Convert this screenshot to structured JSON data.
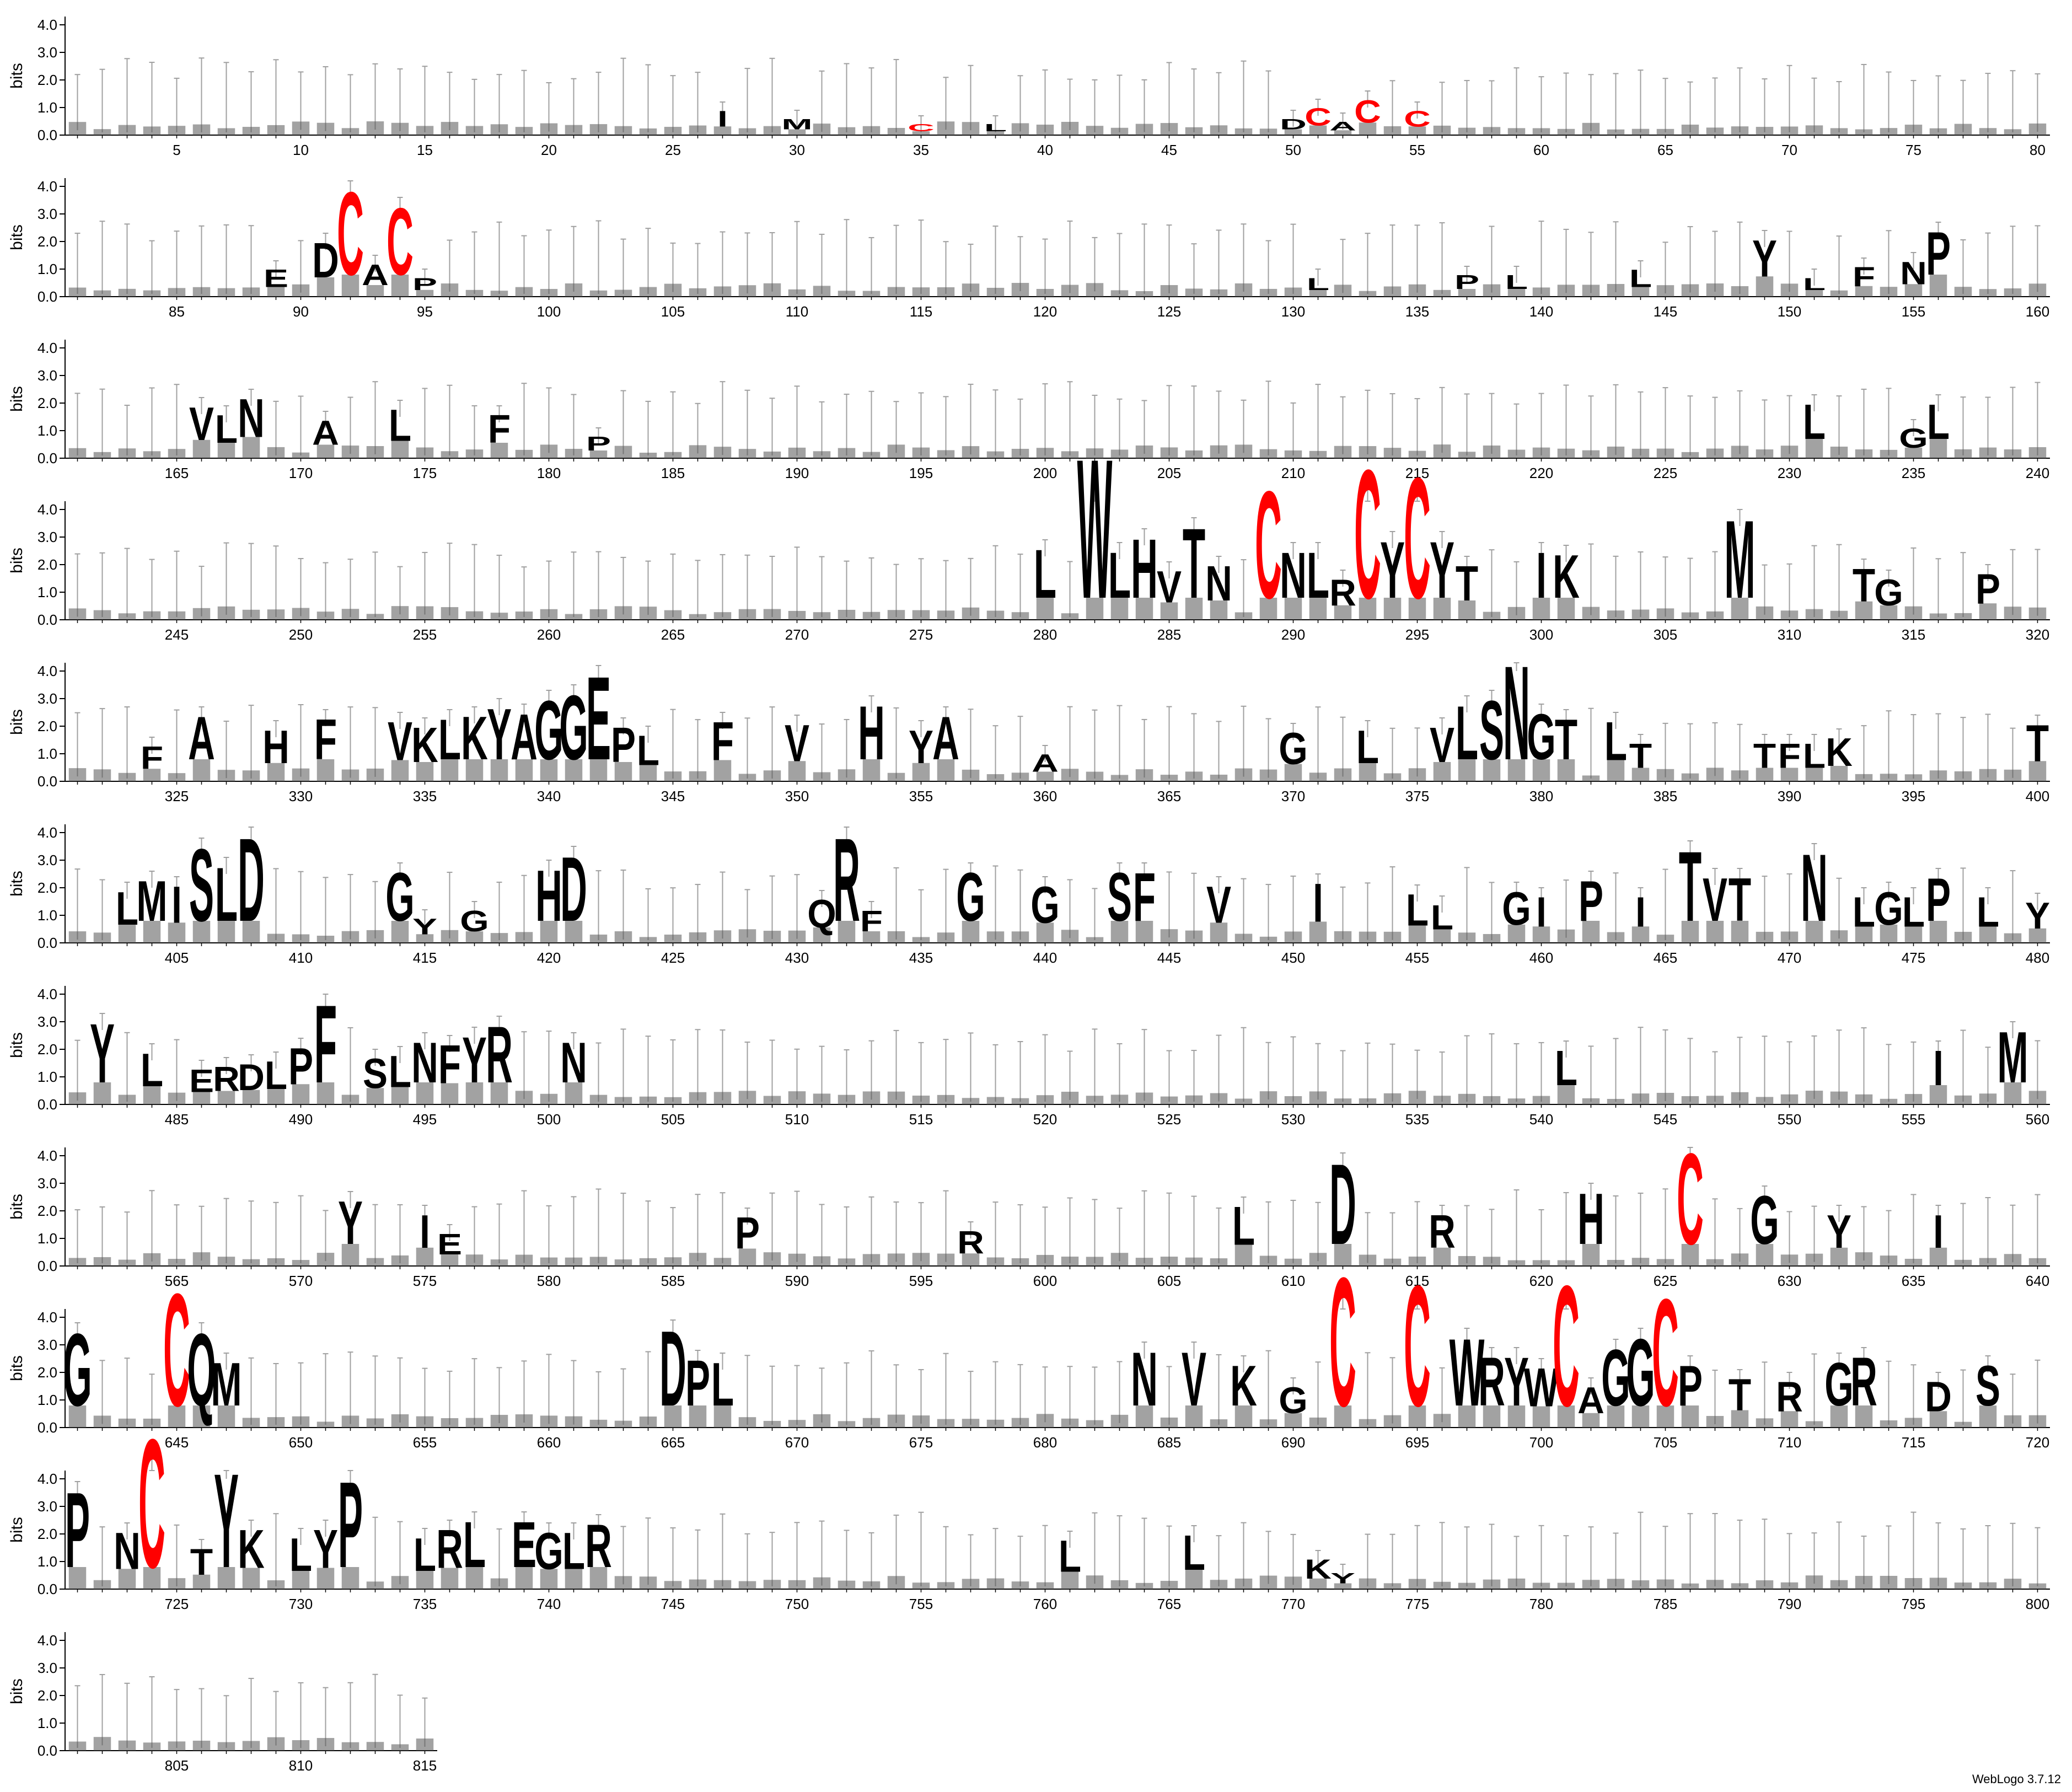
{
  "chart_data": {
    "type": "sequence-logo",
    "ylabel": "bits",
    "ylim": [
      0,
      4.3
    ],
    "yticks": [
      "0.0",
      "1.0",
      "2.0",
      "3.0",
      "4.0"
    ],
    "positions_per_row": 80,
    "total_positions": 815,
    "x_tick_step": 5,
    "colors": {
      "default": "#000000",
      "cysteine": "#ff0000",
      "errorbar": "#a0a0a0"
    },
    "stacks": [
      {
        "pos": 27,
        "top": "I",
        "h": 0.9
      },
      {
        "pos": 30,
        "top": "M",
        "h": 0.6
      },
      {
        "pos": 35,
        "top": "C",
        "h": 0.4
      },
      {
        "pos": 38,
        "top": "L",
        "h": 0.4
      },
      {
        "pos": 50,
        "top": "D",
        "h": 0.6
      },
      {
        "pos": 51,
        "top": "C",
        "h": 1.0
      },
      {
        "pos": 52,
        "top": "A",
        "h": 0.5
      },
      {
        "pos": 53,
        "top": "C",
        "h": 1.3
      },
      {
        "pos": 55,
        "top": "C",
        "h": 0.9
      },
      {
        "pos": 89,
        "top": "E",
        "h": 1.0
      },
      {
        "pos": 91,
        "top": "D",
        "h": 2.0
      },
      {
        "pos": 92,
        "top": "C",
        "h": 3.9
      },
      {
        "pos": 93,
        "top": "A",
        "h": 1.2
      },
      {
        "pos": 94,
        "top": "C",
        "h": 3.3
      },
      {
        "pos": 95,
        "top": "P",
        "h": 0.7
      },
      {
        "pos": 131,
        "top": "L",
        "h": 0.7
      },
      {
        "pos": 137,
        "top": "P",
        "h": 0.8
      },
      {
        "pos": 139,
        "top": "L",
        "h": 0.8
      },
      {
        "pos": 144,
        "top": "L",
        "h": 1.0
      },
      {
        "pos": 149,
        "top": "Y",
        "h": 2.1
      },
      {
        "pos": 151,
        "top": "L",
        "h": 0.7
      },
      {
        "pos": 153,
        "top": "F",
        "h": 1.1
      },
      {
        "pos": 155,
        "top": "N",
        "h": 1.3
      },
      {
        "pos": 156,
        "top": "P",
        "h": 2.4
      },
      {
        "pos": 166,
        "top": "V",
        "h": 1.9
      },
      {
        "pos": 167,
        "top": "L",
        "h": 1.6
      },
      {
        "pos": 168,
        "top": "N",
        "h": 2.2
      },
      {
        "pos": 171,
        "top": "A",
        "h": 1.4
      },
      {
        "pos": 174,
        "top": "L",
        "h": 1.8
      },
      {
        "pos": 178,
        "top": "F",
        "h": 1.6
      },
      {
        "pos": 182,
        "top": "P",
        "h": 0.8
      },
      {
        "pos": 231,
        "top": "L",
        "h": 2.0
      },
      {
        "pos": 235,
        "top": "G",
        "h": 1.1
      },
      {
        "pos": 236,
        "top": "L",
        "h": 2.0
      },
      {
        "pos": 280,
        "top": "L",
        "h": 2.6
      },
      {
        "pos": 282,
        "top": "W",
        "h": 6.0
      },
      {
        "pos": 283,
        "top": "L",
        "h": 2.5
      },
      {
        "pos": 284,
        "top": "H",
        "h": 3.0
      },
      {
        "pos": 285,
        "top": "V",
        "h": 1.8
      },
      {
        "pos": 286,
        "top": "T",
        "h": 3.4
      },
      {
        "pos": 287,
        "top": "N",
        "h": 2.0
      },
      {
        "pos": 289,
        "top": "C",
        "h": 4.8
      },
      {
        "pos": 290,
        "top": "N",
        "h": 2.5
      },
      {
        "pos": 291,
        "top": "L",
        "h": 2.5
      },
      {
        "pos": 292,
        "top": "R",
        "h": 1.5
      },
      {
        "pos": 293,
        "top": "C",
        "h": 5.6
      },
      {
        "pos": 294,
        "top": "Y",
        "h": 2.9
      },
      {
        "pos": 295,
        "top": "C",
        "h": 5.3
      },
      {
        "pos": 296,
        "top": "Y",
        "h": 2.9
      },
      {
        "pos": 297,
        "top": "T",
        "h": 2.0
      },
      {
        "pos": 300,
        "top": "I",
        "h": 2.5
      },
      {
        "pos": 301,
        "top": "K",
        "h": 2.4
      },
      {
        "pos": 308,
        "top": "M",
        "h": 3.7
      },
      {
        "pos": 313,
        "top": "T",
        "h": 1.9
      },
      {
        "pos": 314,
        "top": "G",
        "h": 1.5
      },
      {
        "pos": 318,
        "top": "P",
        "h": 1.7
      },
      {
        "pos": 324,
        "top": "F",
        "h": 1.3
      },
      {
        "pos": 326,
        "top": "A",
        "h": 2.4
      },
      {
        "pos": 329,
        "top": "H",
        "h": 1.9
      },
      {
        "pos": 331,
        "top": "F",
        "h": 2.3
      },
      {
        "pos": 334,
        "top": "V",
        "h": 2.2
      },
      {
        "pos": 335,
        "top": "K",
        "h": 2.0
      },
      {
        "pos": 336,
        "top": "L",
        "h": 2.3
      },
      {
        "pos": 337,
        "top": "K",
        "h": 2.4
      },
      {
        "pos": 338,
        "top": "Y",
        "h": 2.7
      },
      {
        "pos": 339,
        "top": "A",
        "h": 2.5
      },
      {
        "pos": 340,
        "top": "G",
        "h": 3.0
      },
      {
        "pos": 341,
        "top": "G",
        "h": 3.2
      },
      {
        "pos": 342,
        "top": "E",
        "h": 3.9
      },
      {
        "pos": 343,
        "top": "P",
        "h": 2.0
      },
      {
        "pos": 344,
        "top": "L",
        "h": 1.7
      },
      {
        "pos": 347,
        "top": "F",
        "h": 2.2
      },
      {
        "pos": 350,
        "top": "V",
        "h": 2.1
      },
      {
        "pos": 353,
        "top": "H",
        "h": 2.8
      },
      {
        "pos": 355,
        "top": "Y",
        "h": 1.9
      },
      {
        "pos": 356,
        "top": "A",
        "h": 2.4
      },
      {
        "pos": 360,
        "top": "A",
        "h": 1.0
      },
      {
        "pos": 370,
        "top": "G",
        "h": 1.8
      },
      {
        "pos": 373,
        "top": "L",
        "h": 1.9
      },
      {
        "pos": 376,
        "top": "V",
        "h": 2.0
      },
      {
        "pos": 377,
        "top": "L",
        "h": 2.8
      },
      {
        "pos": 378,
        "top": "S",
        "h": 3.0
      },
      {
        "pos": 379,
        "top": "N",
        "h": 4.3
      },
      {
        "pos": 380,
        "top": "G",
        "h": 2.5
      },
      {
        "pos": 381,
        "top": "T",
        "h": 2.3
      },
      {
        "pos": 383,
        "top": "L",
        "h": 2.2
      },
      {
        "pos": 384,
        "top": "T",
        "h": 1.4
      },
      {
        "pos": 389,
        "top": "T",
        "h": 1.4
      },
      {
        "pos": 390,
        "top": "F",
        "h": 1.4
      },
      {
        "pos": 391,
        "top": "L",
        "h": 1.4
      },
      {
        "pos": 392,
        "top": "K",
        "h": 1.6
      },
      {
        "pos": 400,
        "top": "T",
        "h": 2.1
      },
      {
        "pos": 403,
        "top": "L",
        "h": 1.9
      },
      {
        "pos": 404,
        "top": "M",
        "h": 2.3
      },
      {
        "pos": 405,
        "top": "I",
        "h": 2.1
      },
      {
        "pos": 406,
        "top": "S",
        "h": 3.5
      },
      {
        "pos": 407,
        "top": "L",
        "h": 2.8
      },
      {
        "pos": 408,
        "top": "D",
        "h": 3.9
      },
      {
        "pos": 414,
        "top": "G",
        "h": 2.6
      },
      {
        "pos": 415,
        "top": "Y",
        "h": 0.9
      },
      {
        "pos": 417,
        "top": "G",
        "h": 1.2
      },
      {
        "pos": 420,
        "top": "H",
        "h": 2.7
      },
      {
        "pos": 421,
        "top": "D",
        "h": 3.2
      },
      {
        "pos": 431,
        "top": "Q",
        "h": 1.6
      },
      {
        "pos": 432,
        "top": "R",
        "h": 3.9
      },
      {
        "pos": 433,
        "top": "F",
        "h": 1.2
      },
      {
        "pos": 437,
        "top": "G",
        "h": 2.6
      },
      {
        "pos": 440,
        "top": "G",
        "h": 2.1
      },
      {
        "pos": 443,
        "top": "S",
        "h": 2.6
      },
      {
        "pos": 444,
        "top": "F",
        "h": 2.6
      },
      {
        "pos": 447,
        "top": "V",
        "h": 2.1
      },
      {
        "pos": 451,
        "top": "I",
        "h": 2.2
      },
      {
        "pos": 455,
        "top": "L",
        "h": 1.8
      },
      {
        "pos": 456,
        "top": "L",
        "h": 1.4
      },
      {
        "pos": 459,
        "top": "G",
        "h": 1.9
      },
      {
        "pos": 460,
        "top": "I",
        "h": 1.7
      },
      {
        "pos": 462,
        "top": "P",
        "h": 2.3
      },
      {
        "pos": 464,
        "top": "I",
        "h": 1.7
      },
      {
        "pos": 466,
        "top": "T",
        "h": 3.4
      },
      {
        "pos": 467,
        "top": "V",
        "h": 2.4
      },
      {
        "pos": 468,
        "top": "T",
        "h": 2.4
      },
      {
        "pos": 471,
        "top": "N",
        "h": 3.3
      },
      {
        "pos": 473,
        "top": "L",
        "h": 1.7
      },
      {
        "pos": 474,
        "top": "G",
        "h": 1.9
      },
      {
        "pos": 475,
        "top": "L",
        "h": 1.7
      },
      {
        "pos": 476,
        "top": "P",
        "h": 2.4
      },
      {
        "pos": 478,
        "top": "L",
        "h": 1.7
      },
      {
        "pos": 480,
        "top": "Y",
        "h": 1.5
      },
      {
        "pos": 482,
        "top": "Y",
        "h": 3.0
      },
      {
        "pos": 484,
        "top": "L",
        "h": 1.9
      },
      {
        "pos": 486,
        "top": "E",
        "h": 1.3
      },
      {
        "pos": 487,
        "top": "R",
        "h": 1.4
      },
      {
        "pos": 488,
        "top": "D",
        "h": 1.5
      },
      {
        "pos": 489,
        "top": "L",
        "h": 1.6
      },
      {
        "pos": 490,
        "top": "P",
        "h": 2.1
      },
      {
        "pos": 491,
        "top": "F",
        "h": 3.7
      },
      {
        "pos": 493,
        "top": "S",
        "h": 1.7
      },
      {
        "pos": 494,
        "top": "L",
        "h": 1.8
      },
      {
        "pos": 495,
        "top": "N",
        "h": 2.3
      },
      {
        "pos": 496,
        "top": "F",
        "h": 2.2
      },
      {
        "pos": 497,
        "top": "Y",
        "h": 2.5
      },
      {
        "pos": 498,
        "top": "R",
        "h": 2.9
      },
      {
        "pos": 501,
        "top": "N",
        "h": 2.3
      },
      {
        "pos": 541,
        "top": "L",
        "h": 2.0
      },
      {
        "pos": 556,
        "top": "I",
        "h": 2.0
      },
      {
        "pos": 559,
        "top": "M",
        "h": 2.7
      },
      {
        "pos": 572,
        "top": "Y",
        "h": 2.4
      },
      {
        "pos": 575,
        "top": "I",
        "h": 1.9
      },
      {
        "pos": 576,
        "top": "E",
        "h": 1.2
      },
      {
        "pos": 588,
        "top": "P",
        "h": 1.8
      },
      {
        "pos": 597,
        "top": "R",
        "h": 1.3
      },
      {
        "pos": 608,
        "top": "L",
        "h": 2.2
      },
      {
        "pos": 612,
        "top": "D",
        "h": 3.8
      },
      {
        "pos": 616,
        "top": "R",
        "h": 1.9
      },
      {
        "pos": 622,
        "top": "H",
        "h": 2.7
      },
      {
        "pos": 626,
        "top": "C",
        "h": 4.2
      },
      {
        "pos": 629,
        "top": "G",
        "h": 2.6
      },
      {
        "pos": 632,
        "top": "Y",
        "h": 1.9
      },
      {
        "pos": 636,
        "top": "I",
        "h": 1.9
      },
      {
        "pos": 641,
        "top": "G",
        "h": 3.5
      },
      {
        "pos": 645,
        "top": "C",
        "h": 5.0
      },
      {
        "pos": 646,
        "top": "Q",
        "h": 3.5
      },
      {
        "pos": 647,
        "top": "M",
        "h": 2.4
      },
      {
        "pos": 665,
        "top": "D",
        "h": 3.6
      },
      {
        "pos": 666,
        "top": "P",
        "h": 2.5
      },
      {
        "pos": 667,
        "top": "L",
        "h": 2.4
      },
      {
        "pos": 684,
        "top": "N",
        "h": 2.8
      },
      {
        "pos": 686,
        "top": "V",
        "h": 2.8
      },
      {
        "pos": 688,
        "top": "K",
        "h": 2.3
      },
      {
        "pos": 690,
        "top": "G",
        "h": 1.5
      },
      {
        "pos": 692,
        "top": "C",
        "h": 5.6
      },
      {
        "pos": 695,
        "top": "C",
        "h": 5.3
      },
      {
        "pos": 697,
        "top": "W",
        "h": 3.3
      },
      {
        "pos": 698,
        "top": "R",
        "h": 2.6
      },
      {
        "pos": 699,
        "top": "Y",
        "h": 2.6
      },
      {
        "pos": 700,
        "top": "W",
        "h": 2.2
      },
      {
        "pos": 701,
        "top": "C",
        "h": 5.3
      },
      {
        "pos": 702,
        "top": "A",
        "h": 1.5
      },
      {
        "pos": 703,
        "top": "G",
        "h": 2.9
      },
      {
        "pos": 704,
        "top": "G",
        "h": 3.3
      },
      {
        "pos": 705,
        "top": "C",
        "h": 4.8
      },
      {
        "pos": 706,
        "top": "P",
        "h": 2.3
      },
      {
        "pos": 708,
        "top": "T",
        "h": 1.8
      },
      {
        "pos": 710,
        "top": "R",
        "h": 1.7
      },
      {
        "pos": 712,
        "top": "G",
        "h": 2.4
      },
      {
        "pos": 713,
        "top": "R",
        "h": 2.6
      },
      {
        "pos": 716,
        "top": "D",
        "h": 1.7
      },
      {
        "pos": 718,
        "top": "S",
        "h": 2.3
      },
      {
        "pos": 721,
        "top": "P",
        "h": 3.6
      },
      {
        "pos": 723,
        "top": "N",
        "h": 2.1
      },
      {
        "pos": 724,
        "top": "C",
        "h": 5.6
      },
      {
        "pos": 726,
        "top": "T",
        "h": 1.5
      },
      {
        "pos": 727,
        "top": "Y",
        "h": 4.3
      },
      {
        "pos": 728,
        "top": "K",
        "h": 2.2
      },
      {
        "pos": 730,
        "top": "L",
        "h": 1.9
      },
      {
        "pos": 731,
        "top": "Y",
        "h": 2.2
      },
      {
        "pos": 732,
        "top": "P",
        "h": 4.0
      },
      {
        "pos": 735,
        "top": "L",
        "h": 1.9
      },
      {
        "pos": 736,
        "top": "R",
        "h": 2.2
      },
      {
        "pos": 737,
        "top": "L",
        "h": 2.5
      },
      {
        "pos": 739,
        "top": "E",
        "h": 2.5
      },
      {
        "pos": 740,
        "top": "G",
        "h": 2.1
      },
      {
        "pos": 741,
        "top": "L",
        "h": 2.1
      },
      {
        "pos": 742,
        "top": "R",
        "h": 2.4
      },
      {
        "pos": 761,
        "top": "L",
        "h": 1.8
      },
      {
        "pos": 766,
        "top": "L",
        "h": 2.0
      },
      {
        "pos": 771,
        "top": "K",
        "h": 1.1
      },
      {
        "pos": 772,
        "top": "Y",
        "h": 0.6
      }
    ]
  },
  "footer": "WebLogo 3.7.12"
}
